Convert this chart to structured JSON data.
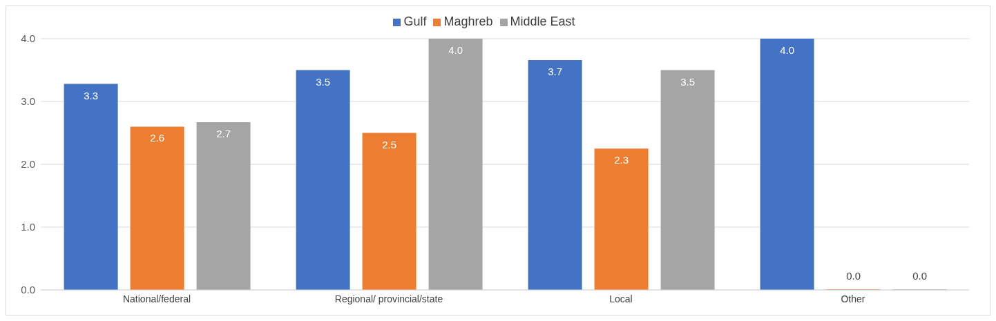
{
  "chart_data": {
    "type": "bar",
    "categories": [
      "National/federal",
      "Regional/ provincial/state",
      "Local",
      "Other"
    ],
    "series": [
      {
        "name": "Gulf",
        "color": "#4472c4",
        "values": [
          3.28,
          3.5,
          3.66,
          4.0
        ],
        "value_labels": [
          "3.3",
          "3.5",
          "3.7",
          "4.0"
        ]
      },
      {
        "name": "Maghreb",
        "color": "#ed7d31",
        "values": [
          2.6,
          2.5,
          2.25,
          0
        ],
        "value_labels": [
          "2.6",
          "2.5",
          "2.3",
          "0.0"
        ]
      },
      {
        "name": "Middle East",
        "color": "#a5a5a5",
        "values": [
          2.67,
          4.0,
          3.5,
          0
        ],
        "value_labels": [
          "2.7",
          "4.0",
          "3.5",
          "0.0"
        ]
      }
    ],
    "ylim": [
      0,
      4
    ],
    "yticks": [
      {
        "value": 0,
        "label": "0.0"
      },
      {
        "value": 1,
        "label": "1.0"
      },
      {
        "value": 2,
        "label": "2.0"
      },
      {
        "value": 3,
        "label": "3.0"
      },
      {
        "value": 4,
        "label": "4.0"
      }
    ],
    "grid": "y",
    "legend": "top"
  }
}
